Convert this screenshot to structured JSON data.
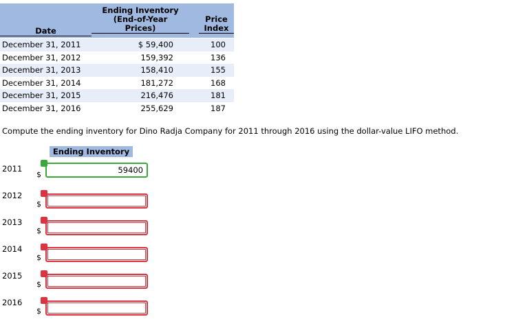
{
  "table": {
    "header": {
      "date": "Date",
      "inventory": [
        "Ending Inventory",
        "(End-of-Year",
        "Prices)"
      ],
      "index": [
        "Price",
        "Index"
      ]
    },
    "rows": [
      [
        "December 31, 2011",
        "$ 59,400",
        "100"
      ],
      [
        "December 31, 2012",
        "159,392",
        "136"
      ],
      [
        "December 31, 2013",
        "158,410",
        "155"
      ],
      [
        "December 31, 2014",
        "181,272",
        "168"
      ],
      [
        "December 31, 2015",
        "216,476",
        "181"
      ],
      [
        "December 31, 2016",
        "255,629",
        "187"
      ]
    ]
  },
  "instruction": "Compute the ending inventory for Dino Radja Company for 2011 through 2016 using the dollar-value LIFO method.",
  "answer": {
    "header": "Ending Inventory",
    "rows": [
      {
        "year": "2011",
        "currency": "$",
        "value": "59400",
        "status": "correct"
      },
      {
        "year": "2012",
        "currency": "$",
        "status": "incorrect"
      },
      {
        "year": "2013",
        "currency": "$",
        "status": "incorrect"
      },
      {
        "year": "2014",
        "currency": "$",
        "status": "incorrect"
      },
      {
        "year": "2015",
        "currency": "$",
        "status": "incorrect"
      },
      {
        "year": "2016",
        "currency": "$",
        "status": "incorrect"
      }
    ]
  }
}
